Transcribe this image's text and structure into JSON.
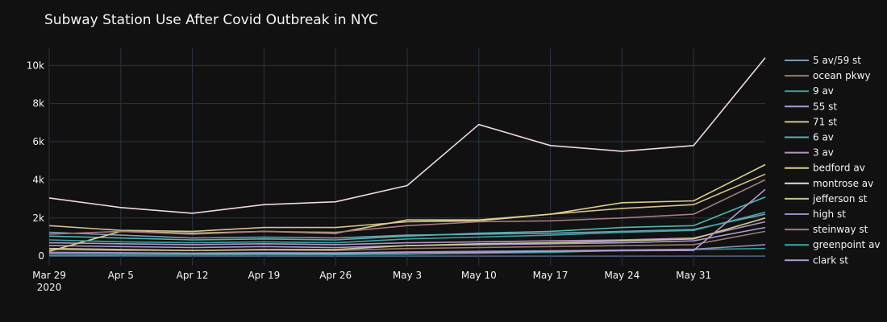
{
  "chart_data": {
    "type": "line",
    "title": "Subway Station Use After Covid Outbreak in NYC",
    "xlabel": "",
    "ylabel": "",
    "x": [
      "2020-03-29",
      "2020-04-05",
      "2020-04-12",
      "2020-04-19",
      "2020-04-26",
      "2020-05-03",
      "2020-05-10",
      "2020-05-17",
      "2020-05-24",
      "2020-05-31",
      "2020-06-07"
    ],
    "x_ticks": [
      {
        "date": "2020-03-29",
        "label": "Mar 29",
        "sub": "2020"
      },
      {
        "date": "2020-04-05",
        "label": "Apr 5",
        "sub": ""
      },
      {
        "date": "2020-04-12",
        "label": "Apr 12",
        "sub": ""
      },
      {
        "date": "2020-04-19",
        "label": "Apr 19",
        "sub": ""
      },
      {
        "date": "2020-04-26",
        "label": "Apr 26",
        "sub": ""
      },
      {
        "date": "2020-05-03",
        "label": "May 3",
        "sub": ""
      },
      {
        "date": "2020-05-10",
        "label": "May 10",
        "sub": ""
      },
      {
        "date": "2020-05-17",
        "label": "May 17",
        "sub": ""
      },
      {
        "date": "2020-05-24",
        "label": "May 24",
        "sub": ""
      },
      {
        "date": "2020-05-31",
        "label": "May 31",
        "sub": ""
      }
    ],
    "y_ticks": [
      {
        "value": 0,
        "label": "0"
      },
      {
        "value": 2000,
        "label": "2k"
      },
      {
        "value": 4000,
        "label": "4k"
      },
      {
        "value": 6000,
        "label": "6k"
      },
      {
        "value": 8000,
        "label": "8k"
      },
      {
        "value": 10000,
        "label": "10k"
      }
    ],
    "xlim": [
      "2020-03-29",
      "2020-06-07"
    ],
    "ylim": [
      -500,
      10900
    ],
    "grid": true,
    "legend_position": "right",
    "series": [
      {
        "name": "5 av/59 st",
        "color": "#7a9bb8",
        "values": [
          1250,
          1100,
          950,
          1000,
          950,
          1100,
          1150,
          1200,
          1300,
          1400,
          2200
        ]
      },
      {
        "name": "ocean pkwy",
        "color": "#9a7d6c",
        "values": [
          350,
          300,
          300,
          320,
          300,
          400,
          450,
          500,
          550,
          600,
          1300
        ]
      },
      {
        "name": "9 av",
        "color": "#3e9c98",
        "values": [
          50,
          60,
          70,
          80,
          80,
          100,
          150,
          200,
          300,
          350,
          400
        ]
      },
      {
        "name": "55 st",
        "color": "#a99bd4",
        "values": [
          550,
          500,
          450,
          500,
          450,
          550,
          600,
          650,
          700,
          800,
          1500
        ]
      },
      {
        "name": "71 st",
        "color": "#d8c08e",
        "values": [
          1600,
          1350,
          1300,
          1500,
          1500,
          1800,
          1850,
          2200,
          2500,
          2700,
          4300
        ]
      },
      {
        "name": "6 av",
        "color": "#4fb6b1",
        "values": [
          1050,
          950,
          850,
          900,
          850,
          1050,
          1200,
          1300,
          1500,
          1600,
          3100
        ]
      },
      {
        "name": "3 av",
        "color": "#b794c3",
        "values": [
          700,
          650,
          600,
          650,
          600,
          700,
          750,
          800,
          850,
          950,
          1800
        ]
      },
      {
        "name": "bedford av",
        "color": "#d9cf8a",
        "values": [
          250,
          1300,
          1200,
          1300,
          1200,
          1900,
          1900,
          2200,
          2800,
          2900,
          4800
        ]
      },
      {
        "name": "montrose av",
        "color": "#f0d7e6",
        "values": [
          3050,
          2550,
          2250,
          2700,
          2850,
          3700,
          6900,
          5800,
          5500,
          5800,
          10400
        ]
      },
      {
        "name": "jefferson st",
        "color": "#c8c691",
        "values": [
          400,
          350,
          300,
          350,
          350,
          550,
          650,
          700,
          800,
          900,
          2000
        ]
      },
      {
        "name": "high st",
        "color": "#8d8fc2",
        "values": [
          200,
          180,
          160,
          180,
          170,
          220,
          250,
          280,
          320,
          360,
          600
        ]
      },
      {
        "name": "steinway st",
        "color": "#a67985",
        "values": [
          1150,
          1300,
          1150,
          1300,
          1250,
          1600,
          1800,
          1850,
          2000,
          2200,
          4000
        ]
      },
      {
        "name": "greenpoint av",
        "color": "#3fa7a5",
        "values": [
          850,
          750,
          700,
          750,
          700,
          900,
          1000,
          1100,
          1250,
          1350,
          2300
        ]
      },
      {
        "name": "clark st",
        "color": "#b59bd0",
        "values": [
          150,
          150,
          140,
          150,
          140,
          180,
          200,
          250,
          280,
          300,
          3500
        ]
      }
    ]
  }
}
